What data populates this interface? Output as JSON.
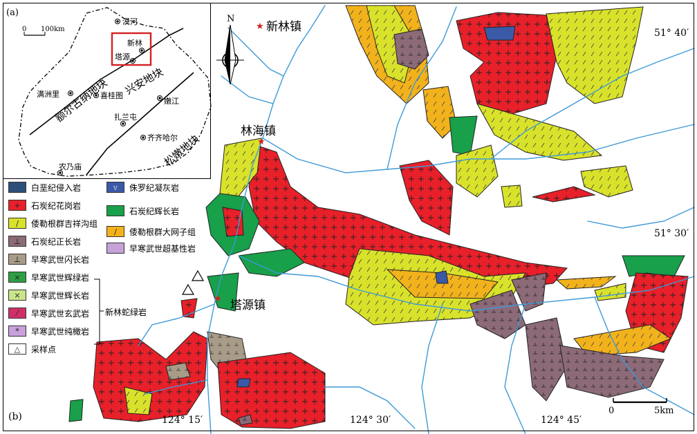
{
  "panel_a": {
    "label": "(a)",
    "scale": {
      "zero": "0",
      "value": "100km"
    },
    "cities": [
      "漠河",
      "新林",
      "塔源",
      "满洲里",
      "喜桂图",
      "嫩江",
      "扎兰屯",
      "齐齐哈尔",
      "农乃庙"
    ],
    "blocks": [
      "额尔古纳地块",
      "兴安地块",
      "松嫩地块"
    ]
  },
  "panel_b": {
    "label": "(b)",
    "towns": [
      "新林镇",
      "林海镇",
      "塔源镇"
    ],
    "north": "N",
    "lat_labels": [
      "51° 40′",
      "51° 30′"
    ],
    "lon_labels": [
      "124° 15′",
      "124° 30′",
      "124° 45′"
    ],
    "scale": {
      "zero": "0",
      "value": "5km"
    }
  },
  "legend": {
    "items": [
      {
        "label": "白垩纪侵入岩",
        "color": "#2d4f7a",
        "pattern": ""
      },
      {
        "label": "石炭纪花岗岩",
        "color": "#e8202a",
        "pattern": "+"
      },
      {
        "label": "倭勒根群吉祥沟组",
        "color": "#d9e22a",
        "pattern": "/"
      },
      {
        "label": "石炭纪正长岩",
        "color": "#8c6a78",
        "pattern": "⊥"
      },
      {
        "label": "早寒武世闪长岩",
        "color": "#a89c88",
        "pattern": "⊥"
      },
      {
        "label": "早寒武世辉绿岩",
        "color": "#2f9e44",
        "pattern": "×"
      },
      {
        "label": "早寒武世辉长岩",
        "color": "#c9e48c",
        "pattern": "×"
      },
      {
        "label": "早寒武世玄武岩",
        "color": "#d0306a",
        "pattern": "⁄"
      },
      {
        "label": "早寒武世纯橄岩",
        "color": "#c9a0dc",
        "pattern": "*"
      },
      {
        "label": "采样点",
        "color": "#ffffff",
        "pattern": "△"
      }
    ],
    "items_right": [
      {
        "label": "侏罗纪凝灰岩",
        "color": "#3a5aa8",
        "pattern": "v"
      },
      {
        "label": "石炭纪辉长岩",
        "color": "#18a04a",
        "pattern": ""
      },
      {
        "label": "倭勒根群大网子组",
        "color": "#f2b21c",
        "pattern": "/"
      },
      {
        "label": "早寒武世超基性岩",
        "color": "#c6a2d8",
        "pattern": ""
      }
    ],
    "group_label": "新林蛇绿岩"
  }
}
